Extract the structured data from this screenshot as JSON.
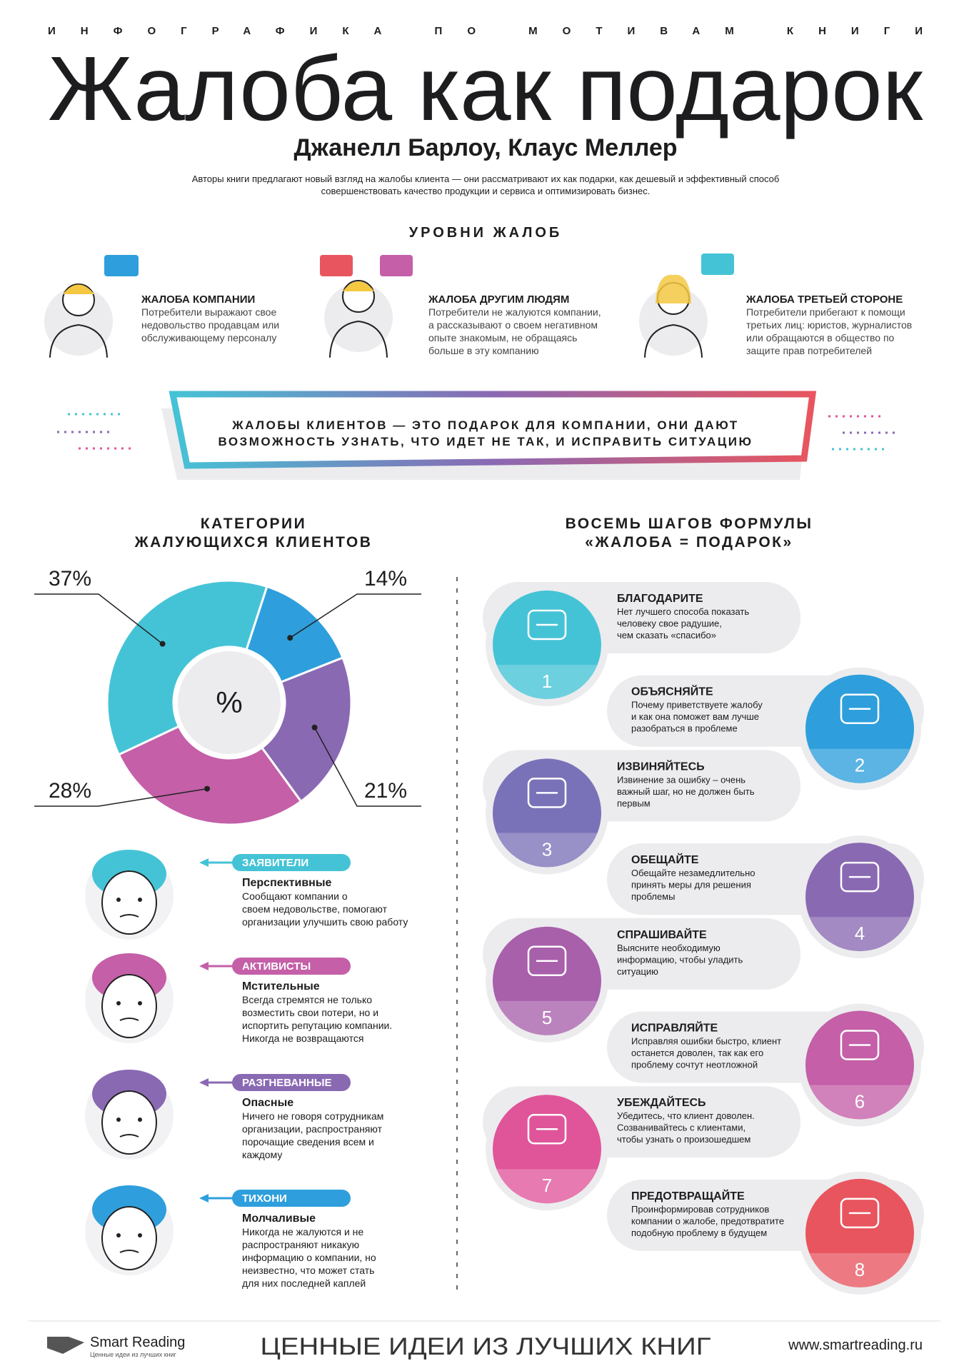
{
  "header": {
    "kicker": "ИНФОГРАФИКА ПО МОТИВАМ КНИГИ",
    "title": "Жалоба как подарок",
    "authors": "Джанелл Барлоу, Клаус Меллер",
    "description": [
      "Авторы книги предлагают новый взгляд на жалобы клиента — они рассматривают их как подарки, как дешевый и эффективный способ",
      "совершенствовать качество продукции и сервиса и оптимизировать бизнес."
    ]
  },
  "levels": {
    "title": "УРОВНИ ЖАЛОБ",
    "items": [
      {
        "title": "ЖАЛОБА КОМПАНИИ",
        "lines": [
          "Потребители выражают свое",
          "недовольство продавцам или",
          "обслуживающему персоналу"
        ]
      },
      {
        "title": "ЖАЛОБА ДРУГИМ ЛЮДЯМ",
        "lines": [
          "Потребители не жалуются компании,",
          "а рассказывают о своем негативном",
          "опыте знакомым, не обращаясь",
          "больше в эту компанию"
        ]
      },
      {
        "title": "ЖАЛОБА ТРЕТЬЕЙ СТОРОНЕ",
        "lines": [
          "Потребители прибегают к помощи",
          "третьих лиц: юристов, журналистов",
          "или обращаются в общество по",
          "защите прав потребителей"
        ]
      }
    ]
  },
  "quote": {
    "lines": [
      "ЖАЛОБЫ КЛИЕНТОВ — ЭТО ПОДАРОК ДЛЯ КОМПАНИИ, ОНИ ДАЮТ",
      "ВОЗМОЖНОСТЬ УЗНАТЬ, ЧТО ИДЕТ НЕ ТАК, И ИСПРАВИТЬ СИТУАЦИЮ"
    ]
  },
  "chart_data": {
    "type": "pie",
    "title": [
      "КАТЕГОРИИ",
      "ЖАЛУЮЩИХСЯ КЛИЕНТОВ"
    ],
    "center_label": "%",
    "values": [
      14,
      21,
      28,
      37
    ],
    "value_labels": [
      "14%",
      "21%",
      "28%",
      "37%"
    ],
    "colors": [
      "#2e9fdc",
      "#8a69b3",
      "#c45fa8",
      "#45c3d6"
    ]
  },
  "customers": {
    "items": [
      {
        "tag": "ЗАЯВИТЕЛИ",
        "color": "#45c3d6",
        "name": "Перспективные",
        "lines": [
          "Сообщают компании о",
          "своем недовольстве, помогают",
          "организации улучшить свою работу"
        ]
      },
      {
        "tag": "АКТИВИСТЫ",
        "color": "#c45fa8",
        "name": "Мстительные",
        "lines": [
          "Всегда стремятся не только",
          "возместить свои потери, но и",
          "испортить репутацию компании.",
          "Никогда не возвращаются"
        ]
      },
      {
        "tag": "РАЗГНЕВАННЫЕ",
        "color": "#8a69b3",
        "name": "Опасные",
        "lines": [
          "Ничего не говоря сотрудникам",
          "организации, распространяют",
          "порочащие сведения всем и",
          "каждому"
        ]
      },
      {
        "tag": "ТИХОНИ",
        "color": "#2e9fdc",
        "name": "Молчаливые",
        "lines": [
          "Никогда не жалуются и не",
          "распространяют никакую",
          "информацию о компании, но",
          "неизвестно, что может стать",
          "для них последней каплей"
        ]
      }
    ]
  },
  "steps": {
    "title": [
      "ВОСЕМЬ ШАГОВ ФОРМУЛЫ",
      "«ЖАЛОБА = ПОДАРОК»"
    ],
    "items": [
      {
        "number": "1",
        "color": "#45c3d6",
        "title": "БЛАГОДАРИТЕ",
        "lines": [
          "Нет лучшего способа показать",
          "человеку свое радушие,",
          "чем сказать «спасибо»"
        ]
      },
      {
        "number": "2",
        "color": "#2e9fdc",
        "title": "ОБЪЯСНЯЙТЕ",
        "lines": [
          "Почему приветствуете жалобу",
          "и как она поможет вам лучше",
          "разобраться в проблеме"
        ]
      },
      {
        "number": "3",
        "color": "#7a72b8",
        "title": "ИЗВИНЯЙТЕСЬ",
        "lines": [
          "Извинение за ошибку – очень",
          "важный шаг, но не должен быть",
          "первым"
        ]
      },
      {
        "number": "4",
        "color": "#8a69b3",
        "title": "ОБЕЩАЙТЕ",
        "lines": [
          "Обещайте незамедлительно",
          "принять меры для решения",
          "проблемы"
        ]
      },
      {
        "number": "5",
        "color": "#a860ab",
        "title": "СПРАШИВАЙТЕ",
        "lines": [
          "Выясните необходимую",
          "информацию, чтобы уладить",
          "ситуацию"
        ]
      },
      {
        "number": "6",
        "color": "#c45fa8",
        "title": "ИСПРАВЛЯЙТЕ",
        "lines": [
          "Исправляя ошибки быстро, клиент",
          "останется доволен, так как его",
          "проблему сочтут неотложной"
        ]
      },
      {
        "number": "7",
        "color": "#e0559a",
        "title": "УБЕЖДАЙТЕСЬ",
        "lines": [
          "Убедитесь, что клиент доволен.",
          "Созванивайтесь с клиентами,",
          "чтобы узнать о произошедшем"
        ]
      },
      {
        "number": "8",
        "color": "#e8555f",
        "title": "ПРЕДОТВРАЩАЙТЕ",
        "lines": [
          "Проинформировав сотрудников",
          "компании о жалобе, предотвратите",
          "подобную проблему в будущем"
        ]
      }
    ]
  },
  "footer": {
    "brand": "Smart Reading",
    "brand_tagline": "Ценные идеи из лучших книг",
    "slogan": "ЦЕННЫЕ ИДЕИ ИЗ ЛУЧШИХ КНИГ",
    "url": "www.smartreading.ru"
  }
}
